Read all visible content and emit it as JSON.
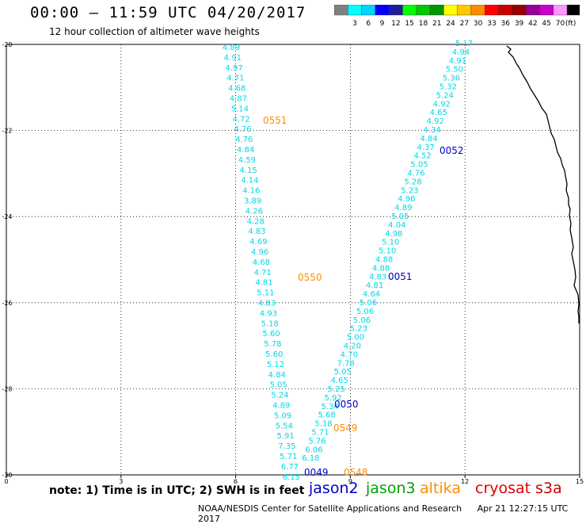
{
  "header": {
    "title": "00:00 – 11:59 UTC 04/20/2017",
    "subtitle": "12 hour collection of altimeter wave heights"
  },
  "colorbar": {
    "colors": [
      "#7f7f7f",
      "#00ffff",
      "#00d2ff",
      "#0000ff",
      "#1e1e96",
      "#00ff00",
      "#00c800",
      "#009600",
      "#ffff00",
      "#ffc800",
      "#ff8c00",
      "#ff0000",
      "#c80000",
      "#960000",
      "#960096",
      "#c800c8",
      "#ff96ff",
      "#000000"
    ],
    "labels": [
      "3",
      "6",
      "9",
      "12",
      "15",
      "18",
      "21",
      "24",
      "27",
      "30",
      "33",
      "36",
      "39",
      "42",
      "45",
      "70"
    ],
    "unit": "(ft)"
  },
  "axes": {
    "x_ticks": [
      "0",
      "3",
      "6",
      "9",
      "12",
      "15"
    ],
    "y_ticks": [
      "-20",
      "-22",
      "-24",
      "-26",
      "-28",
      "-30"
    ]
  },
  "tracks": {
    "left_track_values": [
      "4.89",
      "4.91",
      "4.97",
      "4.71",
      "4.68",
      "4.87",
      "5.14",
      "4.72",
      "4.76",
      "4.76",
      "4.84",
      "4.59",
      "4.15",
      "4.14",
      "4.16",
      "3.89",
      "4.26",
      "4.28",
      "4.83",
      "4.69",
      "4.96",
      "4.68",
      "4.71",
      "4.81",
      "5.11",
      "4.83",
      "4.93",
      "5.18",
      "5.60",
      "5.78",
      "5.60",
      "5.12",
      "4.84",
      "5.05",
      "5.24",
      "4.89",
      "5.09",
      "5.54",
      "5.91",
      "7.35",
      "5.71",
      "6.77",
      "6.15"
    ],
    "right_track_values": [
      "5.17",
      "4.94",
      "4.91",
      "5.50",
      "5.36",
      "5.32",
      "5.24",
      "4.92",
      "4.65",
      "4.92",
      "4.34",
      "4.84",
      "4.37",
      "4.52",
      "5.05",
      "4.76",
      "5.28",
      "5.23",
      "4.96",
      "4.89",
      "5.05",
      "4.04",
      "4.98",
      "5.10",
      "5.10",
      "4.88",
      "4.88",
      "4.83",
      "4.81",
      "4.64",
      "5.06",
      "5.06",
      "5.06",
      "5.23",
      "5.00",
      "4.20",
      "4.70",
      "7.78",
      "5.05",
      "4.65",
      "5.25",
      "5.92",
      "5.34",
      "5.68",
      "5.18",
      "5.71",
      "5.76",
      "6.06",
      "6.18"
    ],
    "pass_labels": [
      {
        "text": "0551",
        "color": "#ff8c00"
      },
      {
        "text": "0052",
        "color": "#0000c8"
      },
      {
        "text": "0550",
        "color": "#ff8c00"
      },
      {
        "text": "0051",
        "color": "#0000c8"
      },
      {
        "text": "0050",
        "color": "#0000c8"
      },
      {
        "text": "0549",
        "color": "#ff8c00"
      },
      {
        "text": "0049",
        "color": "#0000c8"
      },
      {
        "text": "0548",
        "color": "#ff8c00"
      }
    ],
    "value_color": "#00d8e8"
  },
  "notes": {
    "note": "note:  1) Time is in UTC;  2) SWH is in feet"
  },
  "satellites": [
    {
      "name": "jason2",
      "color": "#0000c8"
    },
    {
      "name": "jason3",
      "color": "#00a000"
    },
    {
      "name": "altika",
      "color": "#ff8c00"
    },
    {
      "name": "cryosat",
      "color": "#dd0000"
    },
    {
      "name": "s3a",
      "color": "#c80000"
    }
  ],
  "footer": {
    "credit": "NOAA/NESDIS Center for Satellite Applications and Research",
    "timestamp": "Apr 21 12:27:15 UTC 2017"
  }
}
